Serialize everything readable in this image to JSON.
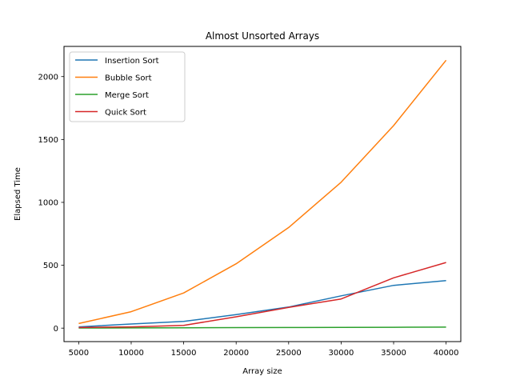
{
  "chart_data": {
    "type": "line",
    "title": "Almost Unsorted Arrays",
    "xlabel": "Array size",
    "ylabel": "Elapsed Time",
    "x": [
      5000,
      10000,
      15000,
      20000,
      25000,
      30000,
      35000,
      40000
    ],
    "xlim": [
      3600,
      41400
    ],
    "ylim": [
      -107,
      2240
    ],
    "xticks": [
      5000,
      10000,
      15000,
      20000,
      25000,
      30000,
      35000,
      40000
    ],
    "yticks": [
      0,
      500,
      1000,
      1500,
      2000
    ],
    "grid": false,
    "legend_position": "top-left",
    "series": [
      {
        "name": "Insertion Sort",
        "color": "#1f77b4",
        "values": [
          10,
          33,
          53,
          108,
          168,
          257,
          340,
          378
        ]
      },
      {
        "name": "Bubble Sort",
        "color": "#ff7f0e",
        "values": [
          37,
          131,
          280,
          512,
          800,
          1160,
          1610,
          2130
        ]
      },
      {
        "name": "Merge Sort",
        "color": "#2ca02c",
        "values": [
          1,
          2,
          3,
          4,
          5,
          6,
          7,
          8
        ]
      },
      {
        "name": "Quick Sort",
        "color": "#d62728",
        "values": [
          5,
          10,
          22,
          90,
          165,
          232,
          400,
          522
        ]
      }
    ]
  }
}
